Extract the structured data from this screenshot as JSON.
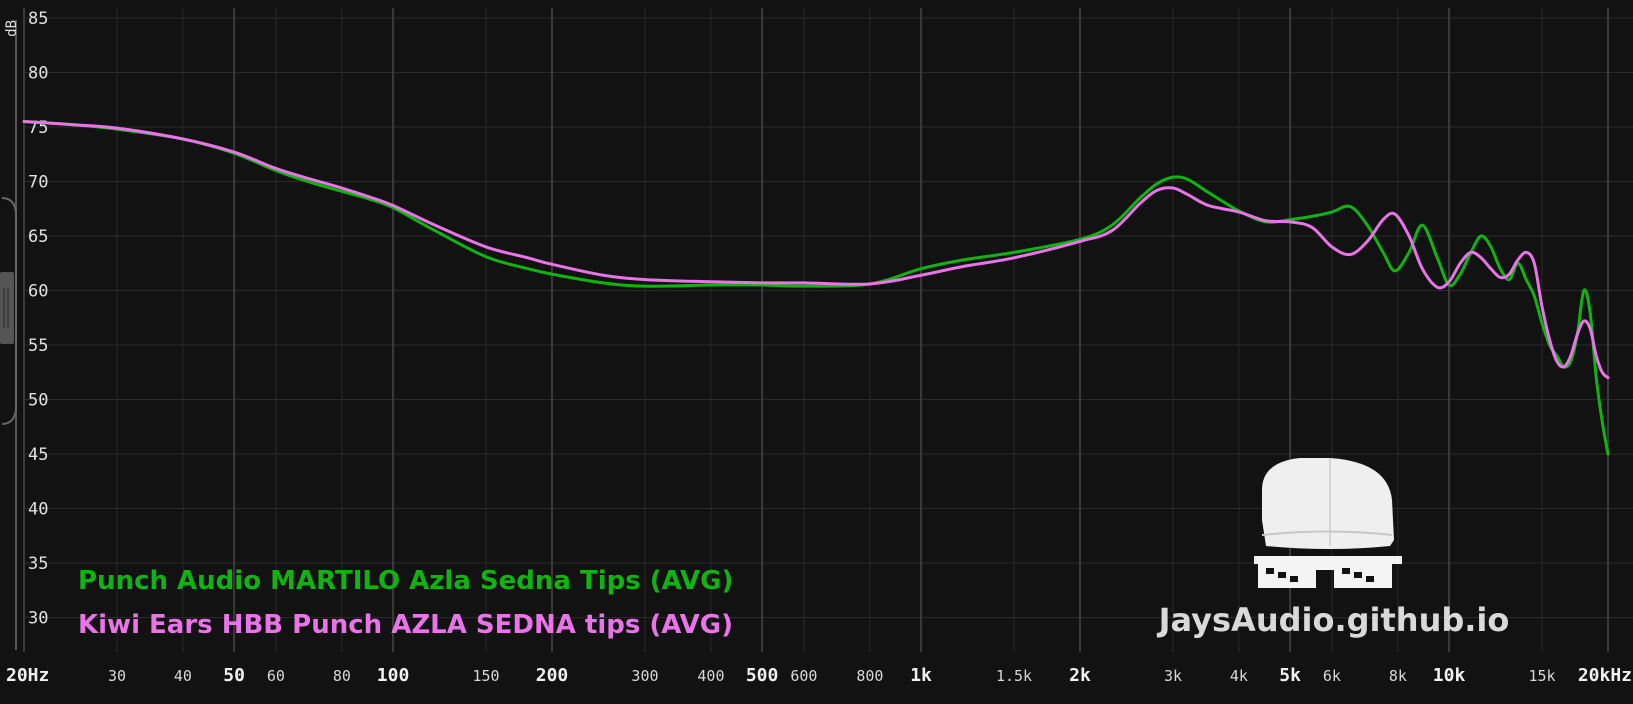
{
  "chart_data": {
    "type": "line",
    "title": "",
    "xlabel": "",
    "ylabel": "dB",
    "x_scale": "log",
    "xlim": [
      20,
      20000
    ],
    "ylim": [
      30,
      86
    ],
    "grid": true,
    "legend_position": "bottom-left",
    "y_ticks": [
      "85",
      "80",
      "75",
      "70",
      "65",
      "60",
      "55",
      "50",
      "45",
      "40",
      "35",
      "30"
    ],
    "x_ticks": [
      {
        "value": 20,
        "label": "20Hz",
        "major": true
      },
      {
        "value": 30,
        "label": "30",
        "major": false
      },
      {
        "value": 40,
        "label": "40",
        "major": false
      },
      {
        "value": 50,
        "label": "50",
        "major": true
      },
      {
        "value": 60,
        "label": "60",
        "major": false
      },
      {
        "value": 80,
        "label": "80",
        "major": false
      },
      {
        "value": 100,
        "label": "100",
        "major": true
      },
      {
        "value": 150,
        "label": "150",
        "major": false
      },
      {
        "value": 200,
        "label": "200",
        "major": true
      },
      {
        "value": 300,
        "label": "300",
        "major": false
      },
      {
        "value": 400,
        "label": "400",
        "major": false
      },
      {
        "value": 500,
        "label": "500",
        "major": true
      },
      {
        "value": 600,
        "label": "600",
        "major": false
      },
      {
        "value": 800,
        "label": "800",
        "major": false
      },
      {
        "value": 1000,
        "label": "1k",
        "major": true
      },
      {
        "value": 1500,
        "label": "1.5k",
        "major": false
      },
      {
        "value": 2000,
        "label": "2k",
        "major": true
      },
      {
        "value": 3000,
        "label": "3k",
        "major": false
      },
      {
        "value": 4000,
        "label": "4k",
        "major": false
      },
      {
        "value": 5000,
        "label": "5k",
        "major": true
      },
      {
        "value": 6000,
        "label": "6k",
        "major": false
      },
      {
        "value": 8000,
        "label": "8k",
        "major": false
      },
      {
        "value": 10000,
        "label": "10k",
        "major": true
      },
      {
        "value": 15000,
        "label": "15k",
        "major": false
      },
      {
        "value": 20000,
        "label": "20kHz",
        "major": true
      }
    ],
    "series": [
      {
        "name": "Punch Audio MARTILO Azla Sedna Tips (AVG)",
        "color": "#11b311",
        "x": [
          20,
          25,
          30,
          40,
          50,
          60,
          70,
          80,
          90,
          100,
          120,
          150,
          180,
          200,
          250,
          300,
          400,
          500,
          600,
          800,
          1000,
          1200,
          1500,
          2000,
          2300,
          2600,
          2800,
          3000,
          3200,
          3500,
          4000,
          4500,
          5000,
          5500,
          6000,
          6500,
          7000,
          7500,
          7900,
          8400,
          8900,
          9500,
          10000,
          10500,
          11000,
          11500,
          12000,
          12500,
          13000,
          13500,
          14000,
          14500,
          15000,
          15500,
          16000,
          16500,
          17000,
          17500,
          18000,
          18500,
          19000,
          19500,
          20000
        ],
        "y": [
          75.5,
          75.2,
          74.8,
          73.9,
          72.6,
          71.0,
          69.9,
          69.1,
          68.4,
          67.6,
          65.5,
          63.1,
          62.0,
          61.5,
          60.7,
          60.4,
          60.5,
          60.5,
          60.4,
          60.6,
          62.0,
          62.8,
          63.5,
          64.7,
          66.0,
          68.5,
          69.8,
          70.4,
          70.2,
          69.0,
          67.3,
          66.3,
          66.5,
          66.8,
          67.2,
          67.7,
          66.0,
          63.5,
          61.8,
          63.5,
          66.0,
          63.0,
          60.5,
          61.5,
          63.5,
          65.0,
          64.0,
          62.0,
          61.0,
          62.5,
          61.0,
          59.5,
          57.0,
          55.0,
          54.0,
          53.0,
          53.5,
          56.0,
          60.0,
          58.0,
          52.0,
          48.0,
          45.0
        ]
      },
      {
        "name": "Kiwi Ears HBB Punch AZLA SEDNA tips (AVG)",
        "color": "#e874e8",
        "x": [
          20,
          25,
          30,
          40,
          50,
          60,
          70,
          80,
          90,
          100,
          120,
          150,
          180,
          200,
          250,
          300,
          400,
          500,
          600,
          800,
          1000,
          1200,
          1500,
          2000,
          2300,
          2600,
          2800,
          3000,
          3200,
          3500,
          4000,
          4500,
          5000,
          5500,
          6000,
          6500,
          7000,
          7500,
          7900,
          8400,
          8900,
          9500,
          10000,
          10500,
          11000,
          11500,
          12000,
          12500,
          13000,
          13500,
          14000,
          14500,
          15000,
          15500,
          16000,
          16500,
          17000,
          17500,
          18000,
          18500,
          19000,
          19500,
          20000
        ],
        "y": [
          75.5,
          75.2,
          74.9,
          73.9,
          72.7,
          71.2,
          70.2,
          69.4,
          68.6,
          67.8,
          66.0,
          64.0,
          63.0,
          62.4,
          61.4,
          61.0,
          60.8,
          60.7,
          60.7,
          60.6,
          61.4,
          62.2,
          63.0,
          64.5,
          65.5,
          68.0,
          69.2,
          69.4,
          68.8,
          67.8,
          67.2,
          66.4,
          66.3,
          65.8,
          64.0,
          63.3,
          64.5,
          66.5,
          67.0,
          65.0,
          62.0,
          60.3,
          60.8,
          62.5,
          63.5,
          63.0,
          62.0,
          61.2,
          61.5,
          62.8,
          63.5,
          62.5,
          58.5,
          55.5,
          53.5,
          53.0,
          54.0,
          56.0,
          57.2,
          56.5,
          54.0,
          52.5,
          52.0
        ]
      }
    ]
  },
  "watermark": {
    "text": "JaysAudio.github.io"
  }
}
